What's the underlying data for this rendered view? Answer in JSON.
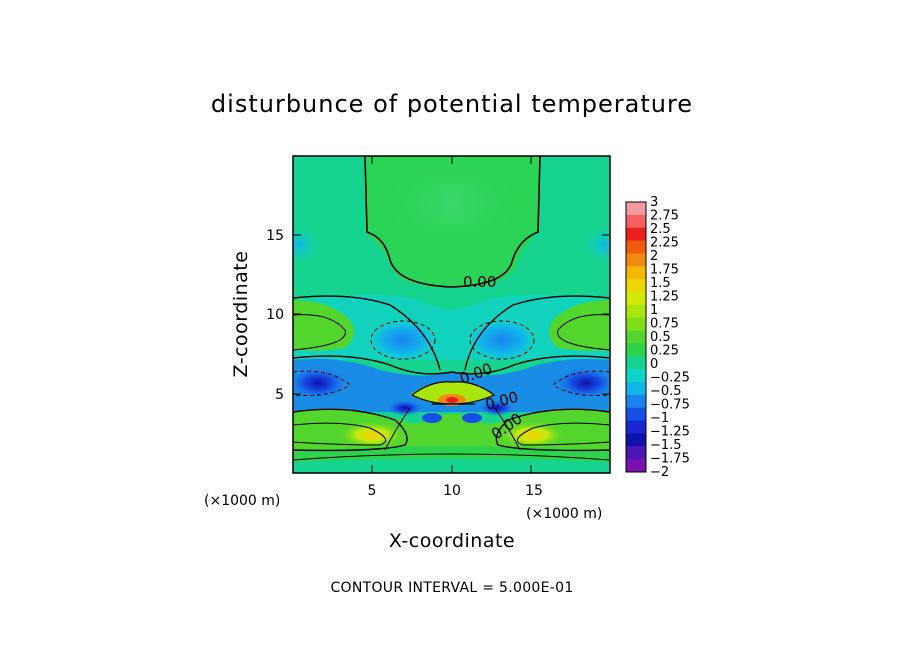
{
  "chart_data": {
    "type": "heatmap",
    "title": "disturbunce of potential temperature",
    "xlabel": "X-coordinate",
    "ylabel": "Z-coordinate",
    "x_unit": "(×1000 m)",
    "z_unit": "(×1000 m)",
    "xlim": [
      0,
      20
    ],
    "ylim": [
      0,
      20
    ],
    "xticks": [
      "5",
      "10",
      "15"
    ],
    "yticks": [
      "5",
      "10",
      "15"
    ],
    "note": "CONTOUR INTERVAL = 5.000E-01",
    "colorbar_labels": [
      "3",
      "2.75",
      "2.5",
      "2.25",
      "2",
      "1.75",
      "1.5",
      "1.25",
      "1",
      "0.75",
      "0.5",
      "0.25",
      "0",
      "−0.25",
      "−0.5",
      "−0.75",
      "−1",
      "−1.25",
      "−1.5",
      "−1.75",
      "−2"
    ],
    "colorbar_colors": [
      "#f29aa0",
      "#f46060",
      "#e82020",
      "#f05a0a",
      "#f08a10",
      "#f5b800",
      "#ecd800",
      "#d2ea0a",
      "#a8e60e",
      "#7ede18",
      "#52d62e",
      "#2ed34d",
      "#16d390",
      "#10d3c8",
      "#10b5ea",
      "#1a84ee",
      "#1650e6",
      "#1a26d2",
      "#1010aa",
      "#4a16b4",
      "#7a0fb0"
    ],
    "contour_labels": [
      "0.00",
      "0.00",
      "0.00",
      "0.00"
    ]
  }
}
